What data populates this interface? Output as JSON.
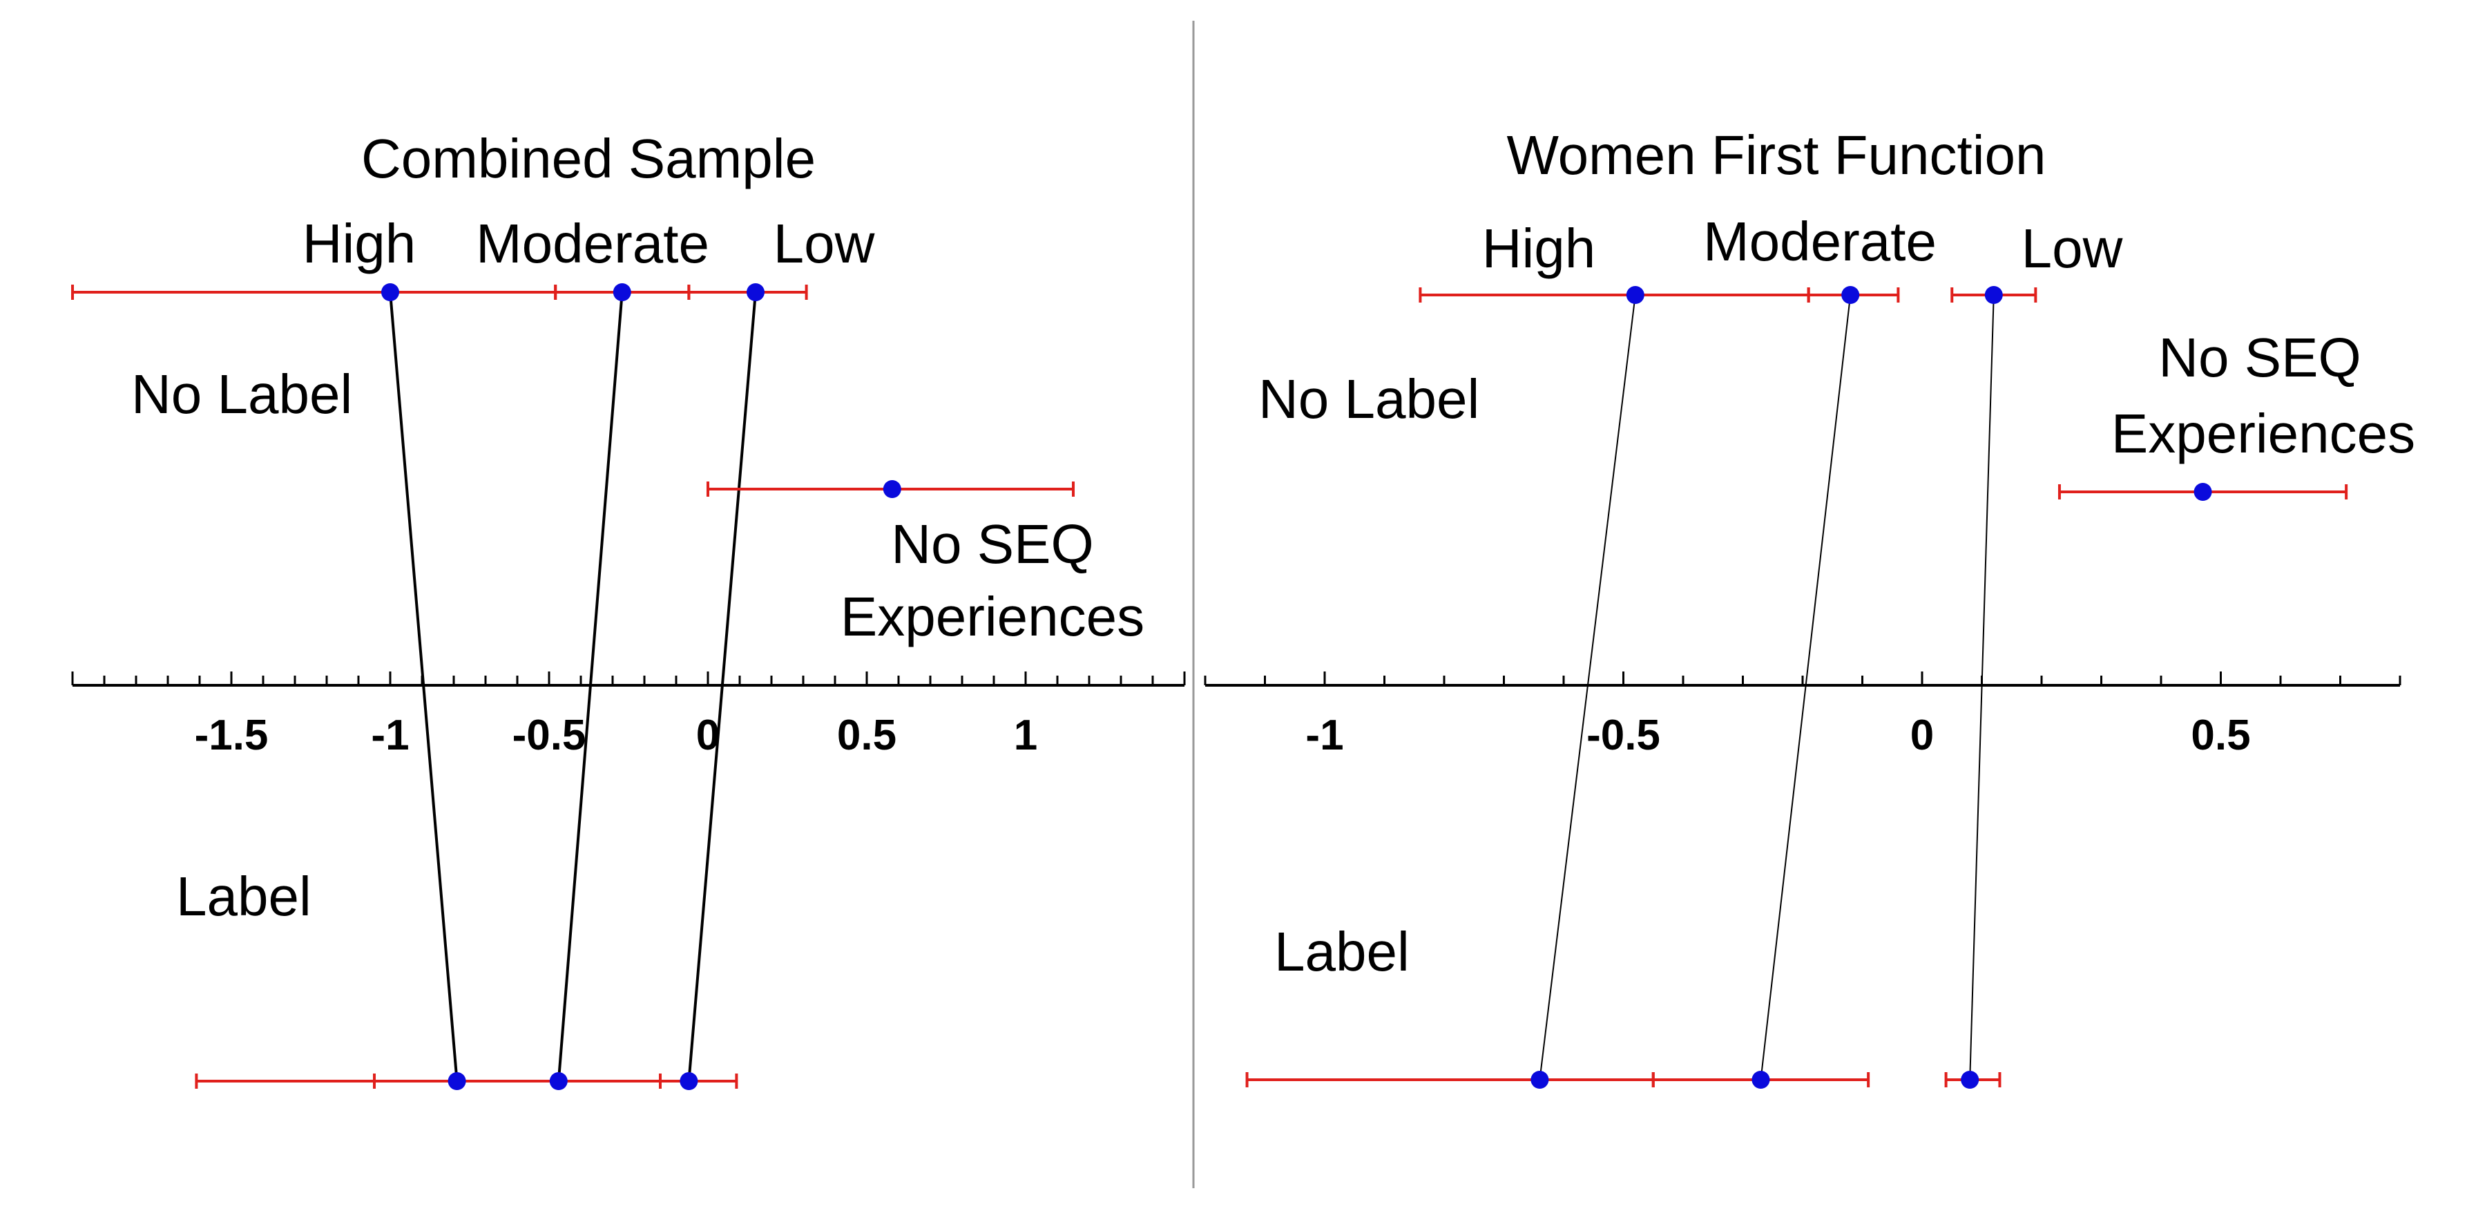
{
  "chart_data": [
    {
      "type": "scatter",
      "title": "Combined Sample",
      "xlim": [
        -2.0,
        1.5
      ],
      "x_ticks": [
        -1.5,
        -1,
        -0.5,
        0,
        0.5,
        1
      ],
      "x_tick_labels": [
        "-1.5",
        "-1",
        "-0.5",
        "0",
        "0.5",
        "1"
      ],
      "row_labels": {
        "top": "No Label",
        "bottom": "Label"
      },
      "no_seq_label": [
        "No SEQ",
        "Experiences"
      ],
      "groups": [
        {
          "name": "High",
          "no_label": -1.0,
          "no_label_ci": [
            -2.0,
            -0.48
          ],
          "label": -0.79,
          "label_ci": [
            -1.61,
            -1.05
          ]
        },
        {
          "name": "Moderate",
          "no_label": -0.27,
          "no_label_ci": [
            -0.48,
            -0.06
          ],
          "label": -0.47,
          "label_ci": [
            -1.05,
            -0.15
          ]
        },
        {
          "name": "Low",
          "no_label": 0.15,
          "no_label_ci": [
            -0.06,
            0.31
          ],
          "label": -0.06,
          "label_ci": [
            -0.15,
            0.09
          ]
        }
      ],
      "no_seq": {
        "value": 0.58,
        "ci": [
          0.0,
          1.15
        ]
      }
    },
    {
      "type": "scatter",
      "title": "Women First Function",
      "xlim": [
        -1.2,
        0.8
      ],
      "x_ticks": [
        -1,
        -0.5,
        0,
        0.5
      ],
      "x_tick_labels": [
        "-1",
        "-0.5",
        "0",
        "0.5"
      ],
      "row_labels": {
        "top": "No Label",
        "bottom": "Label"
      },
      "no_seq_label": [
        "No SEQ",
        "Experiences"
      ],
      "groups": [
        {
          "name": "High",
          "no_label": -0.48,
          "no_label_ci": [
            -0.84,
            -0.19
          ],
          "label": -0.64,
          "label_ci": [
            -1.13,
            -0.45
          ]
        },
        {
          "name": "Moderate",
          "no_label": -0.12,
          "no_label_ci": [
            -0.19,
            -0.04
          ],
          "label": -0.27,
          "label_ci": [
            -0.45,
            -0.09
          ]
        },
        {
          "name": "Low",
          "no_label": 0.12,
          "no_label_ci": [
            0.05,
            0.19
          ],
          "label": 0.08,
          "label_ci": [
            0.04,
            0.13
          ]
        }
      ],
      "no_seq": {
        "value": 0.47,
        "ci": [
          0.23,
          0.71
        ]
      }
    }
  ],
  "colors": {
    "point": "#0a0adc",
    "error_bar": "#e0201c",
    "connector": "#000000",
    "axis": "#000000",
    "divider": "#999999"
  }
}
